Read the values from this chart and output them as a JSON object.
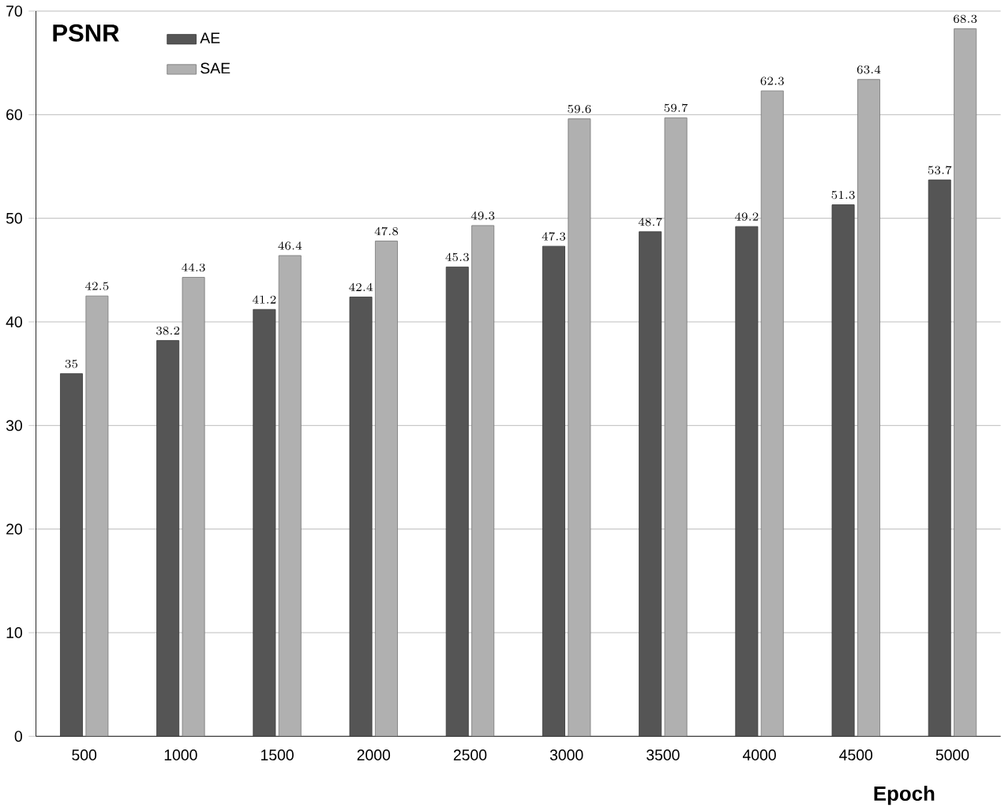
{
  "chart_data": {
    "type": "bar",
    "title": "PSNR",
    "xlabel": "Epoch",
    "categories": [
      "500",
      "1000",
      "1500",
      "2000",
      "2500",
      "3000",
      "3500",
      "4000",
      "4500",
      "5000"
    ],
    "series": [
      {
        "name": "AE",
        "color": "#555555",
        "values": [
          35,
          38.2,
          41.2,
          42.4,
          45.3,
          47.3,
          48.7,
          49.2,
          51.3,
          53.7
        ]
      },
      {
        "name": "SAE",
        "color": "#b0b0b0",
        "values": [
          42.5,
          44.3,
          46.4,
          47.8,
          49.3,
          59.6,
          59.7,
          62.3,
          63.4,
          68.3
        ]
      }
    ],
    "ylim": [
      0,
      70
    ],
    "yticks": [
      0,
      10,
      20,
      30,
      40,
      50,
      60,
      70
    ],
    "grid": "y",
    "legend": "top left",
    "data_labels": true
  }
}
